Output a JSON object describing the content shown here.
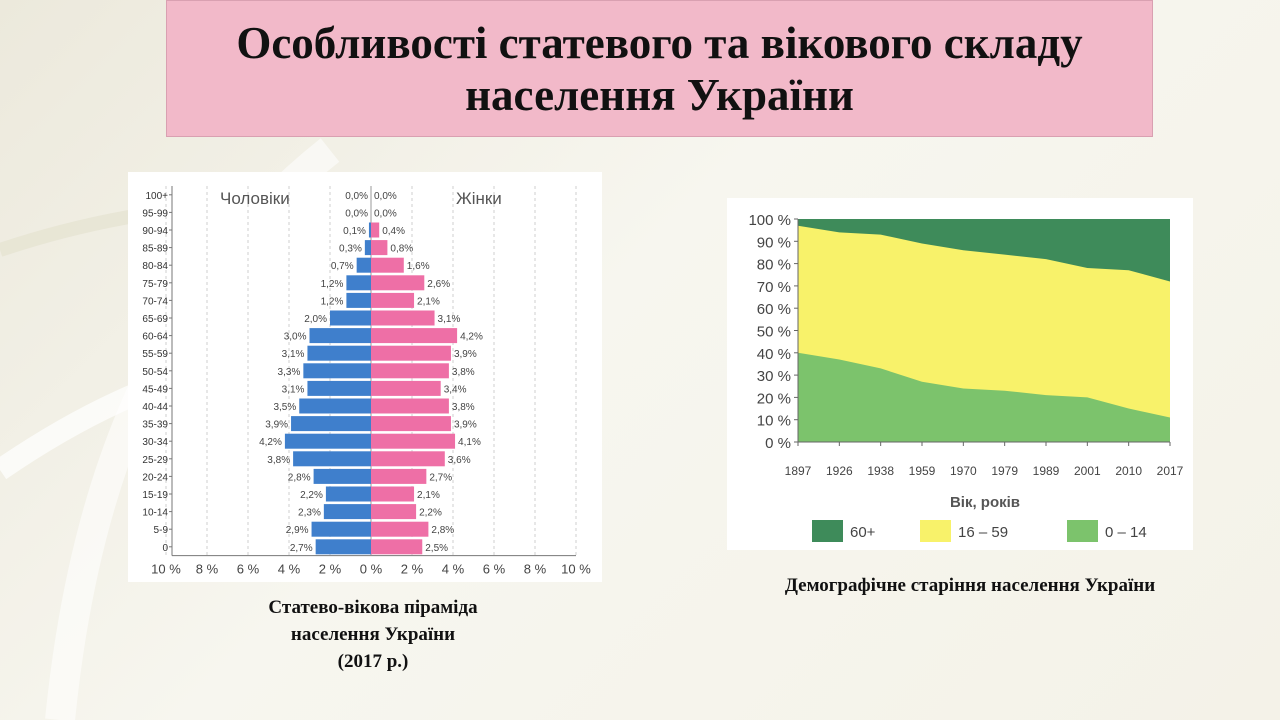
{
  "title": "Особливості статевого та вікового складу населення України",
  "captions": {
    "pyramid_line1": "Статево-вікова піраміда",
    "pyramid_line2": "населення України",
    "pyramid_line3": "(2017 р.)",
    "area": "Демографічне старіння населення України"
  },
  "colors": {
    "men": "#3f7fcc",
    "women": "#ee6fa6",
    "age_60_plus": "#3e8b5a",
    "age_16_59": "#f8f26a",
    "age_0_14": "#7cc36c",
    "title_bg": "#f2b9c9"
  },
  "chart_data": [
    {
      "type": "bar",
      "orientation": "horizontal-pyramid",
      "labels": {
        "left": "Чоловіки",
        "right": "Жінки"
      },
      "categories": [
        "100+",
        "95-99",
        "90-94",
        "85-89",
        "80-84",
        "75-79",
        "70-74",
        "65-69",
        "60-64",
        "55-59",
        "50-54",
        "45-49",
        "40-44",
        "35-39",
        "30-34",
        "25-29",
        "20-24",
        "15-19",
        "10-14",
        "5-9",
        "0"
      ],
      "series": [
        {
          "name": "Чоловіки",
          "values": [
            0.0,
            0.0,
            0.1,
            0.3,
            0.7,
            1.2,
            1.2,
            2.0,
            3.0,
            3.1,
            3.3,
            3.1,
            3.5,
            3.9,
            4.2,
            3.8,
            2.8,
            2.2,
            2.3,
            2.9,
            2.7
          ],
          "display": [
            "0,0%",
            "0,0%",
            "0,1%",
            "0,3%",
            "0,7%",
            "1,2%",
            "1,2%",
            "2,0%",
            "3,0%",
            "3,1%",
            "3,3%",
            "3,1%",
            "3,5%",
            "3,9%",
            "4,2%",
            "3,8%",
            "2,8%",
            "2,2%",
            "2,3%",
            "2,9%",
            "2,7%"
          ]
        },
        {
          "name": "Жінки",
          "values": [
            0.0,
            0.0,
            0.4,
            0.8,
            1.6,
            2.6,
            2.1,
            3.1,
            4.2,
            3.9,
            3.8,
            3.4,
            3.8,
            3.9,
            4.1,
            3.6,
            2.7,
            2.1,
            2.2,
            2.8,
            2.5
          ],
          "display": [
            "0,0%",
            "0,0%",
            "0,4%",
            "0,8%",
            "1,6%",
            "2,6%",
            "2,1%",
            "3,1%",
            "4,2%",
            "3,9%",
            "3,8%",
            "3,4%",
            "3,8%",
            "3,9%",
            "4,1%",
            "3,6%",
            "2,7%",
            "2,1%",
            "2,2%",
            "2,8%",
            "2,5%"
          ]
        }
      ],
      "xlim": [
        -10,
        10
      ],
      "x_ticks": [
        "10 %",
        "8 %",
        "6 %",
        "4 %",
        "2 %",
        "0 %",
        "2 %",
        "4 %",
        "6 %",
        "8 %",
        "10 %"
      ]
    },
    {
      "type": "area",
      "stacked": true,
      "x": [
        "1897",
        "1926",
        "1938",
        "1959",
        "1970",
        "1979",
        "1989",
        "2001",
        "2010",
        "2017"
      ],
      "series": [
        {
          "name": "0 – 14",
          "values": [
            40,
            37,
            33,
            27,
            24,
            23,
            21,
            20,
            15,
            11
          ]
        },
        {
          "name": "16 – 59",
          "values": [
            57,
            57,
            60,
            62,
            62,
            61,
            61,
            58,
            62,
            61
          ]
        },
        {
          "name": "60+",
          "values": [
            3,
            6,
            7,
            11,
            14,
            16,
            18,
            22,
            23,
            28
          ]
        }
      ],
      "xlabel": "Вік, років",
      "ylim": [
        0,
        100
      ],
      "y_ticks": [
        "0 %",
        "10 %",
        "20 %",
        "30 %",
        "40 %",
        "50 %",
        "60 %",
        "70 %",
        "80 %",
        "90 %",
        "100 %"
      ],
      "legend": [
        "60+",
        "16 – 59",
        "0 – 14"
      ],
      "legend_position": "bottom"
    }
  ]
}
